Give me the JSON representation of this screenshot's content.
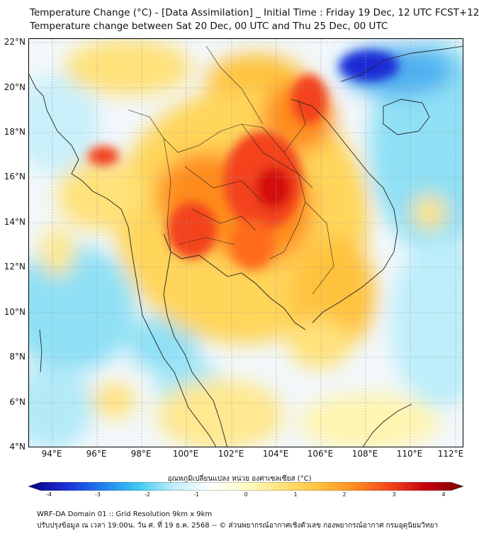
{
  "title": {
    "line1": "Temperature Change (°C) - [Data Assimilation] _ Initial Time : Friday 19 Dec, 12 UTC FCST+120",
    "line2": "Temperature change between Sat 20 Dec, 00 UTC and Thu 25 Dec, 00 UTC"
  },
  "axes": {
    "lat_labels": [
      "22°N",
      "20°N",
      "18°N",
      "16°N",
      "14°N",
      "12°N",
      "10°N",
      "8°N",
      "6°N",
      "4°N"
    ],
    "lon_labels": [
      "94°E",
      "96°E",
      "98°E",
      "100°E",
      "102°E",
      "104°E",
      "106°E",
      "108°E",
      "110°E",
      "112°E"
    ]
  },
  "colorbar": {
    "label": "อุณหภูมิเปลี่ยนแปลง หน่วย องศาเซลเซียส (°C)",
    "min": -4,
    "max": 4,
    "ticks": [
      "-4",
      "-3",
      "-2",
      "-1",
      "0",
      "1",
      "2",
      "3",
      "4"
    ],
    "colors": [
      "#08007a",
      "#1a2bd6",
      "#1f7bef",
      "#3cc8f2",
      "#bdeefa",
      "#ffffff",
      "#fffcc4",
      "#ffe27a",
      "#ffc23c",
      "#ff8c1f",
      "#f3421a",
      "#c2000f",
      "#7a0000"
    ]
  },
  "map": {
    "region": "Mainland Southeast Asia",
    "variable": "Temperature change",
    "units": "°C",
    "lat_range": [
      4,
      22.3
    ],
    "lon_range": [
      93,
      112.4
    ]
  },
  "footer": {
    "line1": "WRF-DA Domain 01 :: Grid Resolution 9km x 9km",
    "line2": "ปรับปรุงข้อมูล ณ เวลา 19:00น. วัน ศ. ที่ 19 ธ.ค. 2568 -- © ส่วนพยากรณ์อากาศเชิงตัวเลข กองพยากรณ์อากาศ กรมอุตุนิยมวิทยา"
  }
}
